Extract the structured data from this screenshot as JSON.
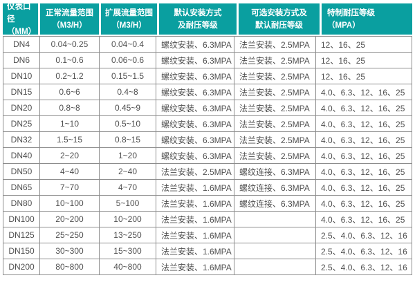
{
  "table": {
    "headers": [
      {
        "line1": "仪表口径",
        "line2": "（MM）"
      },
      {
        "line1": "正常流量范围",
        "line2": "（M3/H）"
      },
      {
        "line1": "扩展流量范围",
        "line2": "（M3/H）"
      },
      {
        "line1": "默认安装方式",
        "line2": "及耐压等级"
      },
      {
        "line1": "可选安装方式及",
        "line2": "默认耐压等级"
      },
      {
        "line1": "特制耐压等级",
        "line2": "（MPA）"
      }
    ],
    "rows": [
      {
        "cells": [
          "DN4",
          "0.04~0.25",
          "0.04~0.4",
          "螺纹安装、6.3MPA",
          "法兰安装、2.5MPA",
          "12、16、25"
        ]
      },
      {
        "cells": [
          "DN6",
          "0.1~0.6",
          "0.06~0.6",
          "螺纹安装、6.3MPA",
          "法兰安装、2.5MPA",
          "12、16、25"
        ]
      },
      {
        "cells": [
          "DN10",
          "0.2~1.2",
          "0.15~1.5",
          "螺纹安装、6.3MPA",
          "法兰安装、2.5MPA",
          "12、16、25"
        ]
      },
      {
        "cells": [
          "DN15",
          "0.6~6",
          "0.4~8",
          "螺纹安装、6.3MPA",
          "法兰安装、2.5MPA",
          "4.0、6.3、12、16、25"
        ]
      },
      {
        "cells": [
          "DN20",
          "0.8~8",
          "0.45~9",
          "螺纹安装、6.3MPA",
          "法兰安装、2.5MPA",
          "4.0、6.3、12、16、25"
        ]
      },
      {
        "cells": [
          "DN25",
          "1~10",
          "0.5~10",
          "螺纹安装、6.3MPA",
          "法兰安装、2.5MPA",
          "4.0、6.3、12、16、25"
        ]
      },
      {
        "cells": [
          "DN32",
          "1.5~15",
          "0.8~15",
          "螺纹安装、6.3MPA",
          "法兰安装、2.5MPA",
          "4.0、6.3、12、16、25"
        ]
      },
      {
        "cells": [
          "DN40",
          "2~20",
          "1~20",
          "螺纹安装、6.3MPA",
          "法兰安装、2.5MPA",
          "4.0、6.3、12、16、25"
        ]
      },
      {
        "cells": [
          "DN50",
          "4~40",
          "2~40",
          "法兰安装、2.5MPA",
          "螺纹连接、6.3MPA",
          "4.0、6.3、12、16、25"
        ]
      },
      {
        "cells": [
          "DN65",
          "7~70",
          "4~70",
          "法兰安装、1.6MPA",
          "螺纹连接、6.3MPA",
          "4.0、6.3、12、16、25"
        ]
      },
      {
        "cells": [
          "DN80",
          "10~100",
          "5~100",
          "法兰安装、1.6MPA",
          "螺纹连接、6.3MPA",
          "4.0、6.3、12、16、25"
        ]
      },
      {
        "cells": [
          "DN100",
          "20~200",
          "10~200",
          "法兰安装、1.6MPA",
          "",
          "4.0、6.3、12、16、25"
        ]
      },
      {
        "cells": [
          "DN125",
          "25~250",
          "13~250",
          "法兰安装、1.6MPA",
          "",
          "2.5、4.0、6.3、12、16"
        ]
      },
      {
        "cells": [
          "DN150",
          "30~300",
          "15~300",
          "法兰安装、1.6MPA",
          "",
          "2.5、4.0、6.3、12、16"
        ]
      },
      {
        "cells": [
          "DN200",
          "80~800",
          "40~800",
          "法兰安装、1.6MPA",
          "",
          "2.5、4.0、6.3、12、16"
        ]
      }
    ]
  },
  "colors": {
    "header_bg": "#0a9fa0",
    "header_text": "#ffffff",
    "body_text": "#4f4f4f",
    "border": "#8c8c8c",
    "background": "#ffffff"
  }
}
